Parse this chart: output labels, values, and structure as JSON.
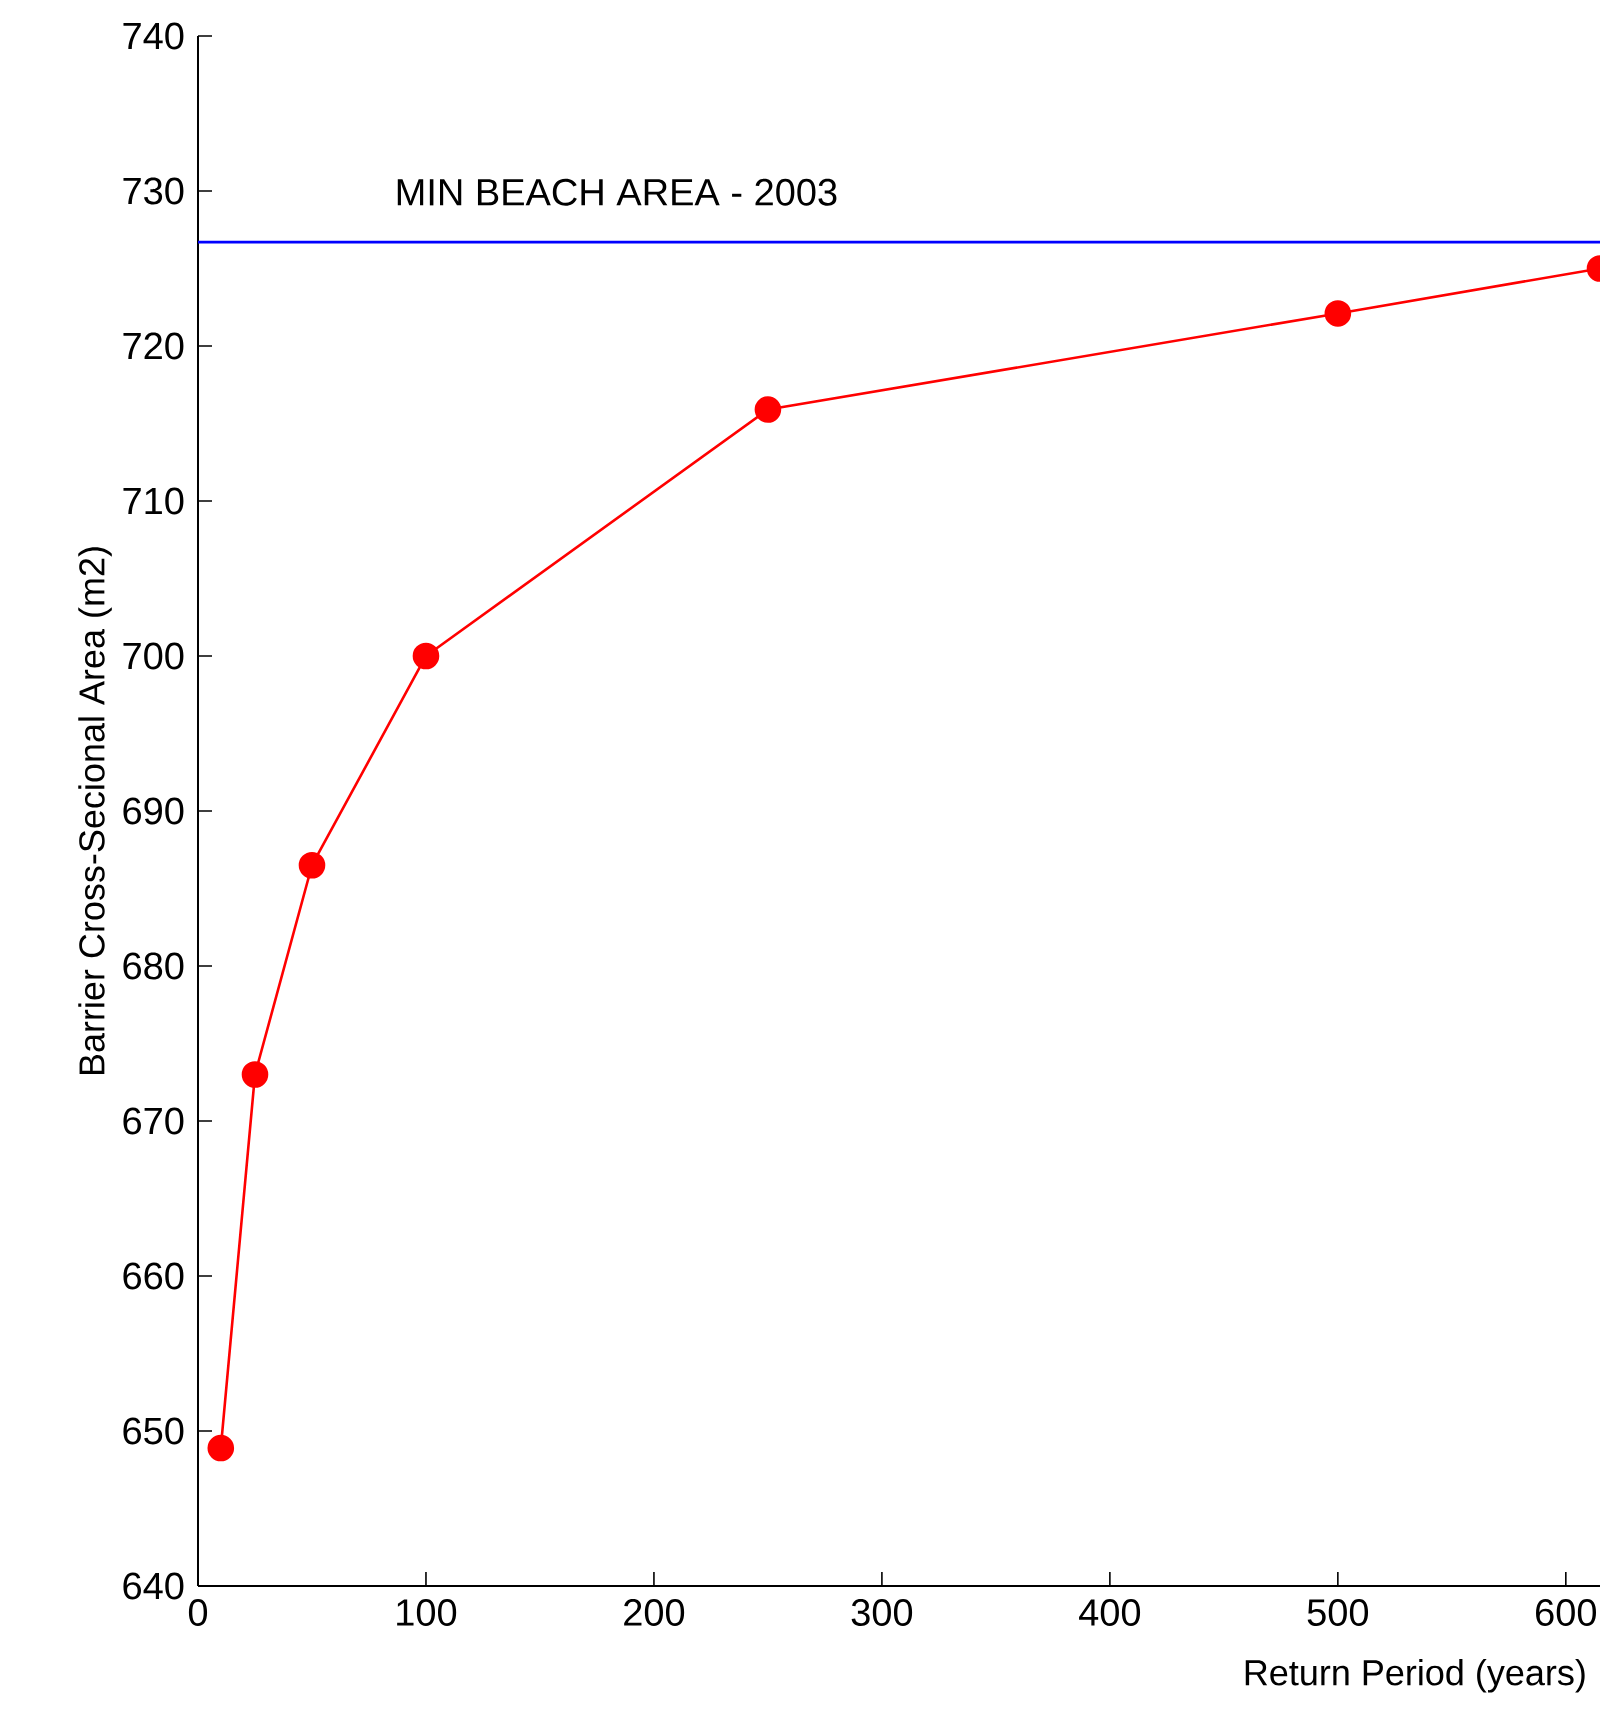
{
  "chart_data": {
    "type": "line",
    "xlabel": "Return Period (years)",
    "ylabel": "Barrier Cross-Secional Area (m2)",
    "x": [
      10,
      25,
      50,
      100,
      250,
      500,
      615
    ],
    "series": [
      {
        "color": "#ff0000",
        "values": [
          648.9,
          673,
          686.5,
          700,
          715.9,
          722.1,
          725
        ]
      }
    ],
    "xlim": [
      0,
      615
    ],
    "xticks": [
      0,
      100,
      200,
      300,
      400,
      500,
      600
    ],
    "ylim": [
      640,
      740
    ],
    "yticks": [
      640,
      650,
      660,
      670,
      680,
      690,
      700,
      710,
      720,
      730,
      740
    ],
    "ref_lines": [
      {
        "axis": "y",
        "value": 726.7,
        "label": "MIN BEACH AREA - 2003",
        "color": "#0000ff"
      }
    ],
    "marker": "circle",
    "line_style": "solid"
  }
}
